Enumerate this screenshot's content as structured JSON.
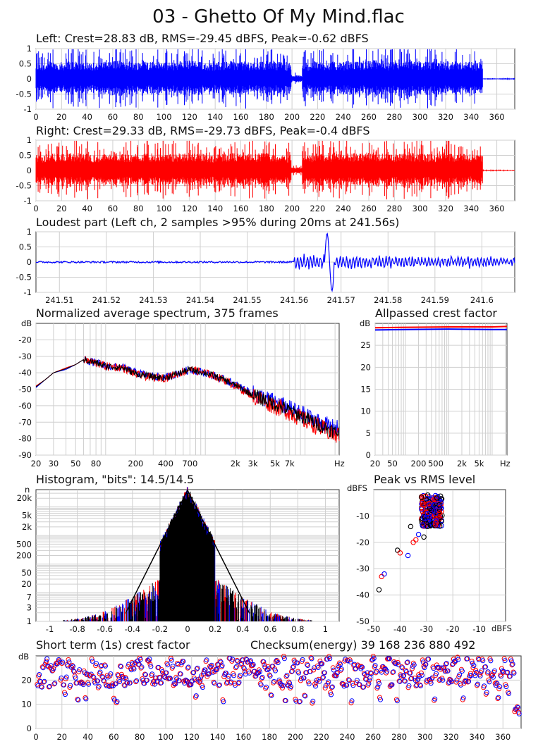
{
  "title": "03 - Ghetto Of My Mind.flac",
  "colors": {
    "left": "#0000ff",
    "right": "#ff0000",
    "mix": "#000000",
    "grid": "#cfcfcf"
  },
  "chart_data": [
    {
      "id": "left",
      "type": "line",
      "title": "Left: Crest=28.83 dB, RMS=-29.45 dBFS, Peak=-0.62 dBFS",
      "x_ticks": [
        "0",
        "20",
        "40",
        "60",
        "80",
        "100",
        "120",
        "140",
        "160",
        "180",
        "200",
        "220",
        "240",
        "260",
        "280",
        "300",
        "320",
        "340",
        "360"
      ],
      "y_ticks": [
        "1",
        "0.5",
        "0",
        "-0.5",
        "-1"
      ],
      "xlim": [
        0,
        374
      ],
      "ylim": [
        -1,
        1
      ],
      "envelope": [
        0.55,
        0.6,
        0.58,
        0.62,
        0.6,
        0.55,
        0.6,
        0.65,
        0.58,
        0.6,
        0.62,
        0.6,
        0.58,
        0.62,
        0.65,
        0.6,
        0.55,
        0.6,
        0.62,
        0.6,
        0.58,
        0.62,
        0.6,
        0.55,
        0.12,
        0.55,
        0.62,
        0.6,
        0.58,
        0.62,
        0.6,
        0.65,
        0.6,
        0.58,
        0.6,
        0.62,
        0.6,
        0.58,
        0.62,
        0.6,
        0.6,
        0.55,
        0.02,
        0.02,
        0.02
      ]
    },
    {
      "id": "right",
      "type": "line",
      "title": "Right: Crest=29.33 dB, RMS=-29.73 dBFS, Peak=-0.4 dBFS",
      "x_ticks": [
        "0",
        "20",
        "40",
        "60",
        "80",
        "100",
        "120",
        "140",
        "160",
        "180",
        "200",
        "220",
        "240",
        "260",
        "280",
        "300",
        "320",
        "340",
        "360"
      ],
      "y_ticks": [
        "1",
        "0.5",
        "0",
        "-0.5",
        "-1"
      ],
      "xlim": [
        0,
        374
      ],
      "ylim": [
        -1,
        1
      ]
    },
    {
      "id": "loudest",
      "type": "line",
      "title": "Loudest part (Left ch, 2 samples >95% during 20ms at 241.56s)",
      "x_ticks": [
        "241.51",
        "241.52",
        "241.53",
        "241.54",
        "241.55",
        "241.56",
        "241.57",
        "241.58",
        "241.59",
        "241.6"
      ],
      "y_ticks": [
        "1",
        "0.5",
        "0",
        "-0.5",
        "-1"
      ],
      "xlim": [
        241.505,
        241.607
      ],
      "ylim": [
        -1,
        1
      ]
    },
    {
      "id": "spectrum",
      "type": "line",
      "title": "Normalized average spectrum, 375 frames",
      "y_unit": "dB",
      "x_unit": "Hz",
      "x_ticks": [
        "20",
        "30",
        "50",
        "80",
        "200",
        "400",
        "700",
        "2k",
        "3k",
        "5k",
        "7k"
      ],
      "y_ticks": [
        "-20",
        "-30",
        "-40",
        "-50",
        "-60",
        "-70",
        "-80",
        "-90"
      ],
      "xlim": [
        20,
        22000
      ],
      "ylim": [
        -90,
        -10
      ],
      "series": [
        {
          "color": "#0000ff",
          "x": [
            20,
            25,
            30,
            40,
            50,
            60,
            80,
            100,
            150,
            200,
            300,
            400,
            500,
            700,
            1000,
            1500,
            2000,
            3000,
            5000,
            7000,
            10000,
            15000,
            20000
          ],
          "y": [
            -49,
            -44,
            -40,
            -38,
            -35,
            -32,
            -34,
            -36,
            -37,
            -40,
            -42,
            -43,
            -41,
            -38,
            -40,
            -44,
            -47,
            -53,
            -58,
            -62,
            -66,
            -71,
            -74
          ]
        },
        {
          "color": "#ff0000",
          "x": [
            20,
            25,
            30,
            40,
            50,
            60,
            80,
            100,
            150,
            200,
            300,
            400,
            500,
            700,
            1000,
            1500,
            2000,
            3000,
            5000,
            7000,
            10000,
            15000,
            20000
          ],
          "y": [
            -48,
            -44,
            -40,
            -37,
            -35,
            -32,
            -34,
            -36,
            -37,
            -41,
            -43,
            -43,
            -41,
            -38,
            -40,
            -44,
            -48,
            -54,
            -60,
            -64,
            -69,
            -74,
            -78
          ]
        }
      ]
    },
    {
      "id": "allpassed",
      "type": "line",
      "title": "Allpassed crest factor",
      "y_unit": "dB",
      "x_unit": "Hz",
      "x_ticks": [
        "20",
        "50",
        "200",
        "500",
        "2k",
        "5k"
      ],
      "y_ticks": [
        "25",
        "20",
        "15",
        "10",
        "5",
        "0"
      ],
      "xlim": [
        20,
        22000
      ],
      "ylim": [
        0,
        30
      ],
      "series": [
        {
          "color": "#0000ff",
          "x": [
            20,
            100,
            1000,
            10000,
            22000
          ],
          "y": [
            28.5,
            28.6,
            28.7,
            28.6,
            28.6
          ]
        },
        {
          "color": "#ff0000",
          "x": [
            20,
            100,
            1000,
            10000,
            22000
          ],
          "y": [
            29.0,
            29.1,
            29.2,
            29.2,
            29.3
          ]
        }
      ]
    },
    {
      "id": "histogram",
      "type": "line",
      "title": "Histogram, \"bits\": 14.5/14.5",
      "y_unit": "n",
      "x_ticks": [
        "-1",
        "-0.8",
        "-0.6",
        "-0.4",
        "-0.2",
        "0",
        "0.2",
        "0.4",
        "0.6",
        "0.8",
        "1"
      ],
      "y_ticks": [
        "20k",
        "5k",
        "2k",
        "500",
        "200",
        "50",
        "20",
        "7",
        "3",
        "1"
      ],
      "xlim": [
        -1.1,
        1.1
      ],
      "ylim": [
        1,
        40000
      ]
    },
    {
      "id": "peak_vs_rms",
      "type": "scatter",
      "title": "Peak vs RMS level",
      "y_unit": "dBFS",
      "x_unit": "dBFS",
      "x_ticks": [
        "-50",
        "-40",
        "-30",
        "-20",
        "-10"
      ],
      "y_ticks": [
        "-10",
        "-20",
        "-30",
        "-40",
        "-50"
      ],
      "xlim": [
        -50,
        0
      ],
      "ylim": [
        -50,
        0
      ]
    },
    {
      "id": "short_term",
      "type": "scatter",
      "title": "Short term (1s) crest factor",
      "y_unit": "dB",
      "x_ticks": [
        "0",
        "20",
        "40",
        "60",
        "80",
        "100",
        "120",
        "140",
        "160",
        "180",
        "200",
        "220",
        "240",
        "260",
        "280",
        "300",
        "320",
        "340",
        "360"
      ],
      "y_ticks": [
        "20",
        "10",
        "0"
      ],
      "xlim": [
        0,
        374
      ],
      "ylim": [
        0,
        30
      ]
    }
  ],
  "checksum": "Checksum(energy) 39 168 236 880 492"
}
